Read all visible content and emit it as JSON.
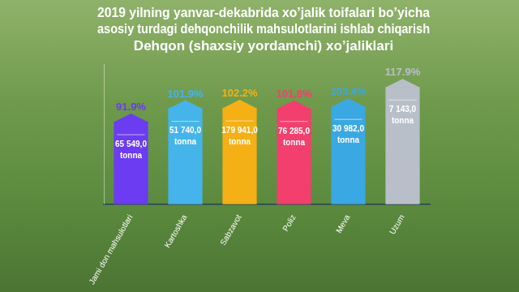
{
  "chart_data": {
    "type": "bar",
    "title": [
      "2019 yilning yanvar-dekabrida xo’jalik toifalari bo’yicha",
      "asosiy turdagi dehqonchilik mahsulotlarini ishlab chiqarish"
    ],
    "subtitle": "Dehqon (shaxsiy yordamchi) xo’jaliklari",
    "categories": [
      "Jami don mahsulotlari",
      "Kartoshka",
      "Sabzavot",
      "Poliz",
      "Meva",
      "Uzum"
    ],
    "values": [
      91.9,
      101.9,
      102.2,
      101.8,
      103.4,
      117.9
    ],
    "value_labels": [
      "91.9%",
      "101.9%",
      "102.2%",
      "101.8%",
      "103.4%",
      "117.9%"
    ],
    "colors": [
      "#6b3cf2",
      "#45b4ea",
      "#f5b015",
      "#f23f6e",
      "#3aa8e2",
      "#b9bfc9"
    ],
    "volume_labels": [
      "65 549,0",
      "51 740,0",
      "179 941,0",
      "76 285,0",
      "30 982,0",
      "7 143,0"
    ],
    "volume_unit": "tonna",
    "ylim": [
      30,
      135
    ],
    "data_labels": true,
    "tick_labels": "x",
    "grid": false
  }
}
